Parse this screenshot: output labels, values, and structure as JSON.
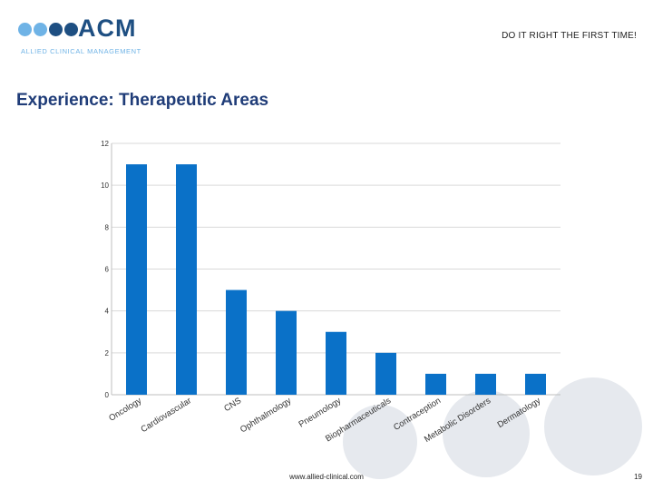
{
  "header": {
    "brand_name": "ACM",
    "brand_subtitle": "ALLIED CLINICAL MANAGEMENT",
    "tagline": "DO IT RIGHT THE FIRST TIME!"
  },
  "slide_title": "Experience: Therapeutic Areas",
  "footer": {
    "url": "www.allied-clinical.com",
    "page_number": "19"
  },
  "colors": {
    "bar": "#0a71c8",
    "brand_dark": "#1e4f82",
    "brand_light": "#6fb3e6",
    "title": "#1f3c78",
    "decor": "#e6e9ee"
  },
  "chart_data": {
    "type": "bar",
    "categories": [
      "Oncology",
      "Cardiovascular",
      "CNS",
      "Ophthalmology",
      "Pneumology",
      "Biopharmaceuticals",
      "Contraception",
      "Metabolic Disorders",
      "Dermatology"
    ],
    "values": [
      11,
      11,
      5,
      4,
      3,
      2,
      1,
      1,
      1
    ],
    "title": "",
    "xlabel": "",
    "ylabel": "",
    "ylim": [
      0,
      12
    ],
    "yticks": [
      0,
      2,
      4,
      6,
      8,
      10,
      12
    ],
    "grid": true,
    "legend": "none"
  }
}
